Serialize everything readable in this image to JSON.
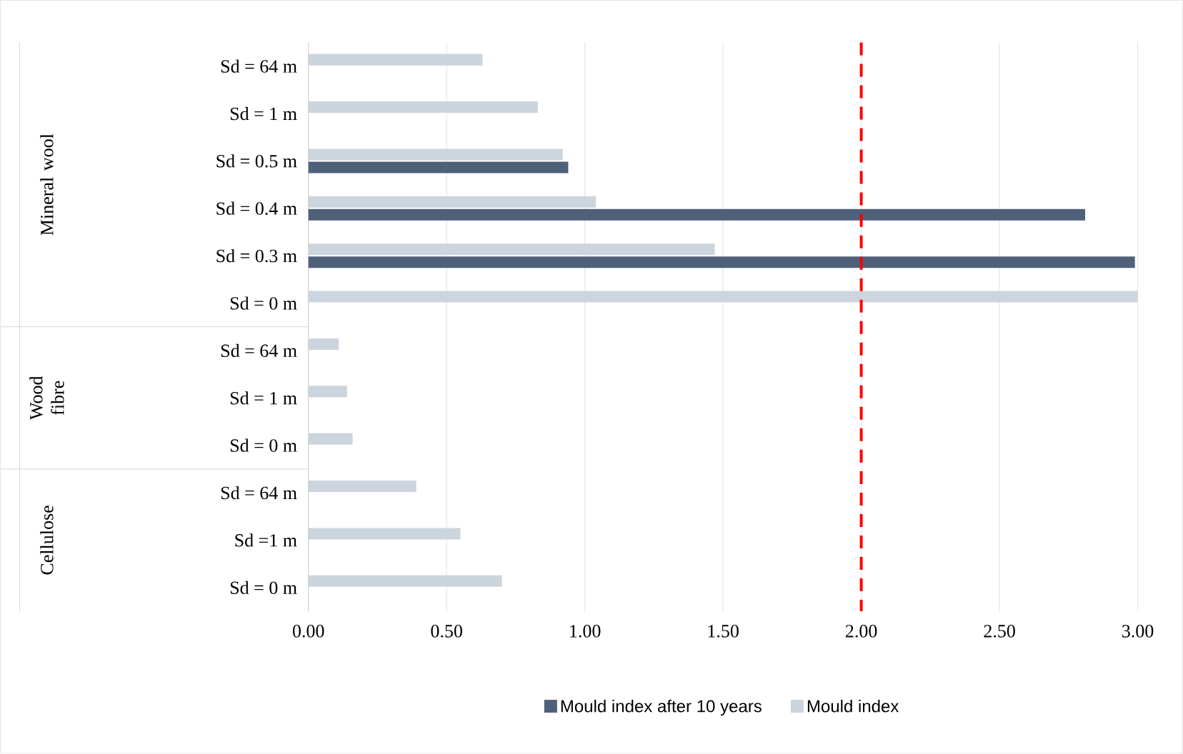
{
  "chart_data": {
    "type": "bar",
    "orientation": "horizontal",
    "categories": [
      "Sd = 64 m",
      "Sd = 1 m",
      "Sd = 0.5 m",
      "Sd = 0.4 m",
      "Sd = 0.3 m",
      "Sd = 0 m",
      "Sd = 64 m",
      "Sd = 1 m",
      "Sd = 0 m",
      "Sd = 64 m",
      "Sd =1 m",
      "Sd = 0 m"
    ],
    "series": [
      {
        "name": "Mould index after 10 years",
        "color": "#4f6079",
        "values": [
          null,
          null,
          0.94,
          2.81,
          2.99,
          null,
          null,
          null,
          null,
          null,
          null,
          null
        ]
      },
      {
        "name": "Mould index",
        "color": "#ccd4de",
        "values": [
          0.63,
          0.83,
          0.92,
          1.04,
          1.47,
          3.0,
          0.11,
          0.14,
          0.16,
          0.39,
          0.55,
          0.7
        ]
      }
    ],
    "annotations": [
      "Mineral wool",
      "Wood fibre",
      "Cellulose"
    ],
    "xlim": [
      0,
      3
    ],
    "xticks": [
      {
        "value": 0,
        "label": "0.00"
      },
      {
        "value": 0.5,
        "label": "0.50"
      },
      {
        "value": 1,
        "label": "1.00"
      },
      {
        "value": 1.5,
        "label": "1.50"
      },
      {
        "value": 2,
        "label": "2.00"
      },
      {
        "value": 2.5,
        "label": "2.50"
      },
      {
        "value": 3,
        "label": "3.00"
      }
    ],
    "ref_lines": [
      {
        "axis": "x",
        "value": 2,
        "color": "#ff0000",
        "line_style": "dashed"
      }
    ],
    "grid": "x",
    "legend": "bottom"
  }
}
